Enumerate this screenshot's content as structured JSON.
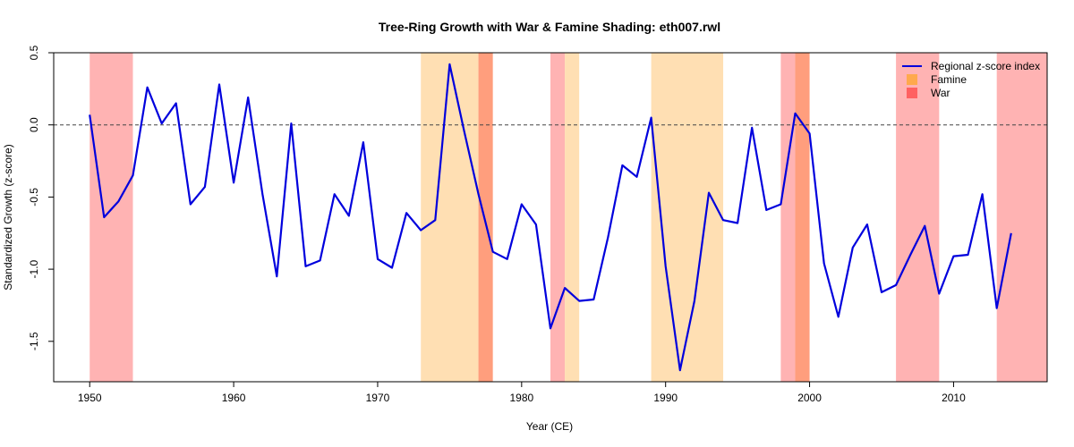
{
  "chart_data": {
    "type": "line",
    "title": "Tree-Ring Growth with War & Famine Shading: eth007.rwl",
    "xlabel": "Year (CE)",
    "ylabel": "Standardized Growth (z-score)",
    "xlim": [
      1947.5,
      2016.5
    ],
    "ylim": [
      -1.78,
      0.5
    ],
    "xticks": [
      1950,
      1960,
      1970,
      1980,
      1990,
      2000,
      2010
    ],
    "yticks": [
      0.5,
      0.0,
      -0.5,
      -1.0,
      -1.5
    ],
    "ytick_labels": [
      "0.5",
      "0.0",
      "-0.5",
      "-1.0",
      "-1.5"
    ],
    "reference_line": {
      "y": 0.0,
      "style": "dashed"
    },
    "grid": false,
    "legend_position": "top-right",
    "legend": [
      {
        "label": "Regional z-score index",
        "kind": "line",
        "color": "#0000dd"
      },
      {
        "label": "Famine",
        "kind": "box",
        "color": "#ffa94d"
      },
      {
        "label": "War",
        "kind": "box",
        "color": "#ff6161"
      }
    ],
    "shading": [
      {
        "type": "war",
        "start": 1950,
        "end": 1953,
        "color": "#ffb3b3"
      },
      {
        "type": "famine",
        "start": 1973,
        "end": 1977,
        "color": "#ffdfb3"
      },
      {
        "type": "war+famine",
        "start": 1977,
        "end": 1978,
        "color": "#ff9e7d"
      },
      {
        "type": "war",
        "start": 1982,
        "end": 1983,
        "color": "#ffb3b3"
      },
      {
        "type": "famine",
        "start": 1983,
        "end": 1984,
        "color": "#ffdfb3"
      },
      {
        "type": "famine",
        "start": 1989,
        "end": 1994,
        "color": "#ffdfb3"
      },
      {
        "type": "war",
        "start": 1998,
        "end": 1999,
        "color": "#ffb3b3"
      },
      {
        "type": "war+famine",
        "start": 1999,
        "end": 2000,
        "color": "#ff9e7d"
      },
      {
        "type": "war",
        "start": 2006,
        "end": 2009,
        "color": "#ffb3b3"
      },
      {
        "type": "war",
        "start": 2013,
        "end": 2016.5,
        "color": "#ffb3b3"
      }
    ],
    "series": [
      {
        "name": "Regional z-score index",
        "color": "#0000dd",
        "x": [
          1950,
          1951,
          1952,
          1953,
          1954,
          1955,
          1956,
          1957,
          1958,
          1959,
          1960,
          1961,
          1962,
          1963,
          1964,
          1965,
          1966,
          1967,
          1968,
          1969,
          1970,
          1971,
          1972,
          1973,
          1974,
          1975,
          1976,
          1977,
          1978,
          1979,
          1980,
          1981,
          1982,
          1983,
          1984,
          1985,
          1986,
          1987,
          1988,
          1989,
          1990,
          1991,
          1992,
          1993,
          1994,
          1995,
          1996,
          1997,
          1998,
          1999,
          2000,
          2001,
          2002,
          2003,
          2004,
          2005,
          2006,
          2007,
          2008,
          2009,
          2010,
          2011,
          2012,
          2013,
          2014
        ],
        "y": [
          0.07,
          -0.64,
          -0.53,
          -0.35,
          0.26,
          0.01,
          0.15,
          -0.55,
          -0.43,
          0.28,
          -0.4,
          0.19,
          -0.48,
          -1.05,
          0.01,
          -0.98,
          -0.94,
          -0.48,
          -0.63,
          -0.12,
          -0.93,
          -0.99,
          -0.61,
          -0.73,
          -0.66,
          0.42,
          -0.04,
          -0.48,
          -0.88,
          -0.93,
          -0.55,
          -0.69,
          -1.41,
          -1.13,
          -1.22,
          -1.21,
          -0.78,
          -0.28,
          -0.36,
          0.05,
          -0.98,
          -1.7,
          -1.22,
          -0.47,
          -0.66,
          -0.68,
          -0.02,
          -0.59,
          -0.55,
          0.08,
          -0.06,
          -0.96,
          -1.33,
          -0.85,
          -0.69,
          -1.16,
          -1.11,
          -0.9,
          -0.7,
          -1.17,
          -0.91,
          -0.9,
          -0.48,
          -1.27,
          -0.75
        ]
      }
    ]
  }
}
